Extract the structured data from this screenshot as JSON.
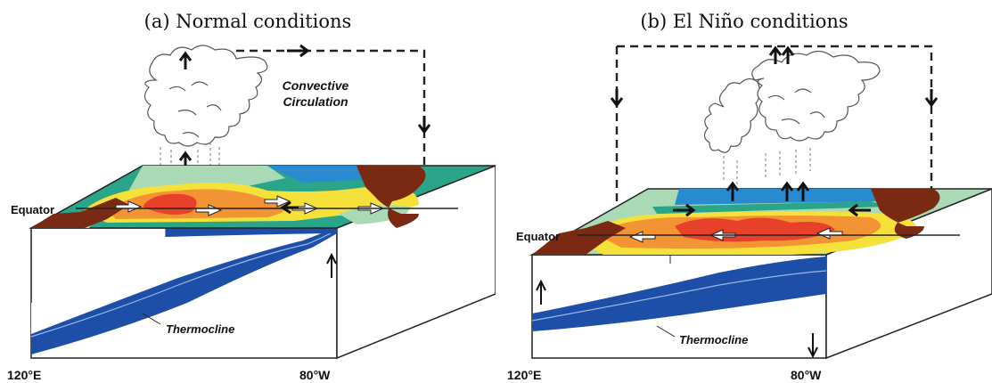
{
  "panels": [
    {
      "id": "a",
      "title": "(a) Normal conditions",
      "circulation_label_line1": "Convective",
      "circulation_label_line2": "Circulation",
      "equator_label": "Equator",
      "thermocline_label": "Thermocline",
      "left_longitude": "120°E",
      "right_longitude": "80°W"
    },
    {
      "id": "b",
      "title": "(b) El Niño conditions",
      "equator_label": "Equator",
      "thermocline_label": "Thermocline",
      "left_longitude": "120°E",
      "right_longitude": "80°W"
    }
  ],
  "colors": {
    "warm_core": "#e8412a",
    "warm": "#f29433",
    "mid": "#f5e13a",
    "cool": "#a9dab5",
    "cold": "#2aa58a",
    "coldest": "#2a8ad0",
    "land": "#7a2a12",
    "thermocline_water": "#1d4fa8"
  }
}
